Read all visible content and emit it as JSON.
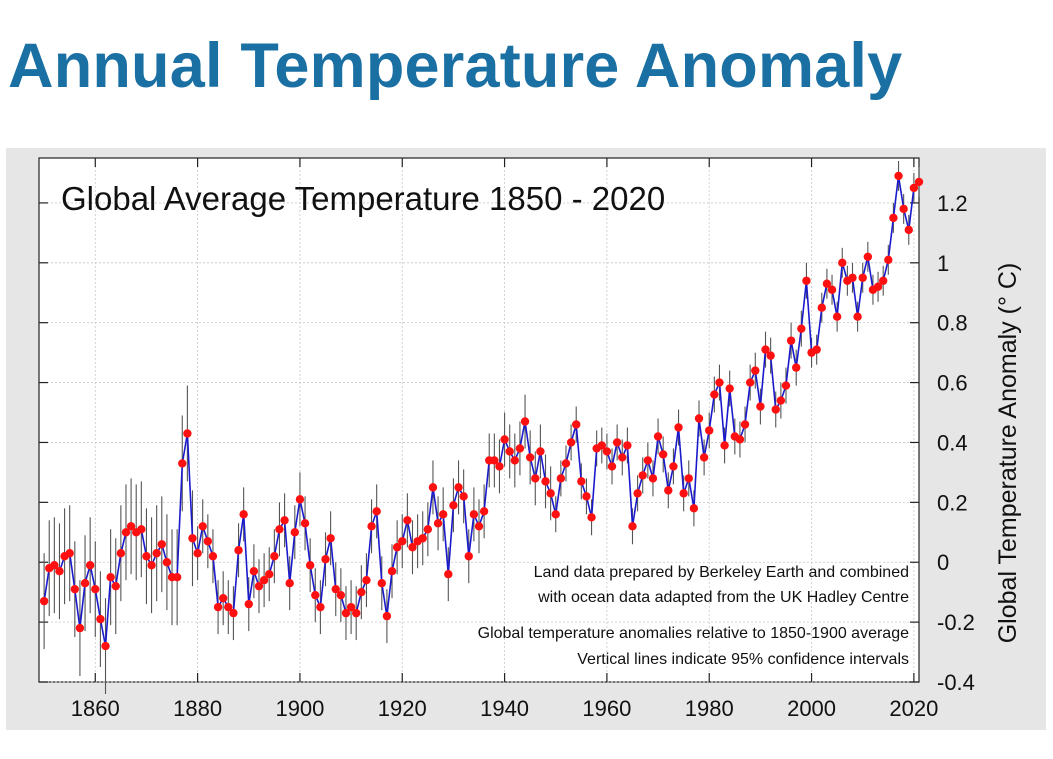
{
  "page": {
    "title": "Annual Temperature Anomaly"
  },
  "chart_data": {
    "type": "line",
    "title": "Global Average Temperature 1850 - 2020",
    "ylabel": "Global Temperature Anomaly (° C)",
    "xlabel": "",
    "xlim": [
      1849,
      2021
    ],
    "ylim": [
      -0.4,
      1.35
    ],
    "x_ticks": [
      1860,
      1880,
      1900,
      1920,
      1940,
      1960,
      1980,
      2000,
      2020
    ],
    "y_ticks": [
      -0.4,
      -0.2,
      0,
      0.2,
      0.4,
      0.6,
      0.8,
      1,
      1.2
    ],
    "y_tick_labels": [
      "-0.4",
      "-0.2",
      "0",
      "0.2",
      "0.4",
      "0.6",
      "0.8",
      "1",
      "1.2"
    ],
    "grid": true,
    "y_axis_side": "right",
    "series": [
      {
        "color": "#1a1acc",
        "marker_color": "#ff1010",
        "error_bar_color": "#555555",
        "start_year": 1850,
        "values": [
          -0.13,
          -0.02,
          -0.01,
          -0.03,
          0.02,
          0.03,
          -0.09,
          -0.22,
          -0.07,
          -0.01,
          -0.09,
          -0.19,
          -0.28,
          -0.05,
          -0.08,
          0.03,
          0.1,
          0.12,
          0.1,
          0.11,
          0.02,
          -0.01,
          0.03,
          0.06,
          0.0,
          -0.05,
          -0.05,
          0.33,
          0.43,
          0.08,
          0.03,
          0.12,
          0.07,
          0.02,
          -0.15,
          -0.12,
          -0.15,
          -0.17,
          0.04,
          0.16,
          -0.14,
          -0.03,
          -0.08,
          -0.06,
          -0.04,
          0.02,
          0.11,
          0.14,
          -0.07,
          0.1,
          0.21,
          0.13,
          -0.01,
          -0.11,
          -0.15,
          0.01,
          0.08,
          -0.09,
          -0.11,
          -0.17,
          -0.15,
          -0.17,
          -0.1,
          -0.06,
          0.12,
          0.17,
          -0.07,
          -0.18,
          -0.03,
          0.05,
          0.07,
          0.14,
          0.05,
          0.07,
          0.08,
          0.11,
          0.25,
          0.13,
          0.16,
          -0.04,
          0.19,
          0.25,
          0.22,
          0.02,
          0.16,
          0.12,
          0.17,
          0.34,
          0.34,
          0.32,
          0.41,
          0.37,
          0.34,
          0.38,
          0.47,
          0.35,
          0.28,
          0.37,
          0.27,
          0.23,
          0.16,
          0.28,
          0.33,
          0.4,
          0.46,
          0.27,
          0.22,
          0.15,
          0.38,
          0.39,
          0.37,
          0.32,
          0.4,
          0.35,
          0.39,
          0.12,
          0.23,
          0.29,
          0.34,
          0.28,
          0.42,
          0.36,
          0.24,
          0.32,
          0.45,
          0.23,
          0.28,
          0.18,
          0.48,
          0.35,
          0.44,
          0.56,
          0.6,
          0.39,
          0.58,
          0.42,
          0.41,
          0.46,
          0.6,
          0.64,
          0.52,
          0.71,
          0.69,
          0.51,
          0.54,
          0.59,
          0.74,
          0.65,
          0.78,
          0.94,
          0.7,
          0.71,
          0.85,
          0.93,
          0.91,
          0.82,
          1.0,
          0.94,
          0.95,
          0.82,
          0.95,
          1.02,
          0.91,
          0.92,
          0.94,
          1.01,
          1.15,
          1.29,
          1.18,
          1.11,
          1.25,
          1.27
        ],
        "uncertainty": 0.1
      }
    ],
    "annotations": [
      "Land data prepared by Berkeley Earth and combined",
      "with ocean data adapted from the UK Hadley Centre",
      "Global temperature anomalies relative to 1850-1900 average",
      "Vertical lines indicate 95% confidence intervals"
    ]
  }
}
